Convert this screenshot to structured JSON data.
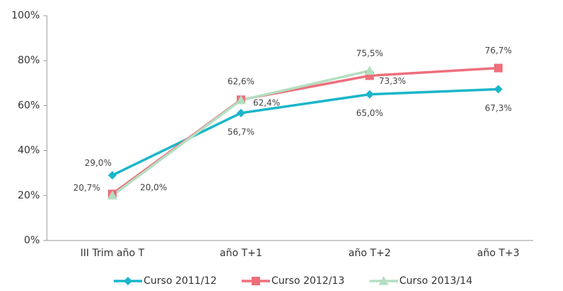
{
  "chart_data": {
    "type": "line",
    "categories": [
      "III Trim año T",
      "año T+1",
      "año T+2",
      "año T+3"
    ],
    "series": [
      {
        "name": "Curso 2011/12",
        "color": "#1ab6c9",
        "marker": "diamond",
        "values": [
          29.0,
          56.7,
          65.0,
          67.3
        ],
        "value_labels": [
          "29,0%",
          "56,7%",
          "65,0%",
          "67,3%"
        ]
      },
      {
        "name": "Curso 2012/13",
        "color": "#ee6f7c",
        "marker": "square",
        "values": [
          20.7,
          62.6,
          73.3,
          76.7
        ],
        "value_labels": [
          "20,7%",
          "62,6%",
          "73,3%",
          "76,7%"
        ]
      },
      {
        "name": "Curso 2013/14",
        "color": "#b3dfc1",
        "marker": "triangle",
        "values": [
          20.0,
          62.4,
          75.5,
          null
        ],
        "value_labels": [
          "20,0%",
          "62,4%",
          "75,5%",
          null
        ]
      }
    ],
    "ylim": [
      0,
      100
    ],
    "yticks": [
      {
        "value": 0,
        "label": "0%"
      },
      {
        "value": 20,
        "label": "20%"
      },
      {
        "value": 40,
        "label": "40%"
      },
      {
        "value": 60,
        "label": "60%"
      },
      {
        "value": 80,
        "label": "80%"
      },
      {
        "value": 100,
        "label": "100%"
      }
    ],
    "legend": "bottom"
  }
}
